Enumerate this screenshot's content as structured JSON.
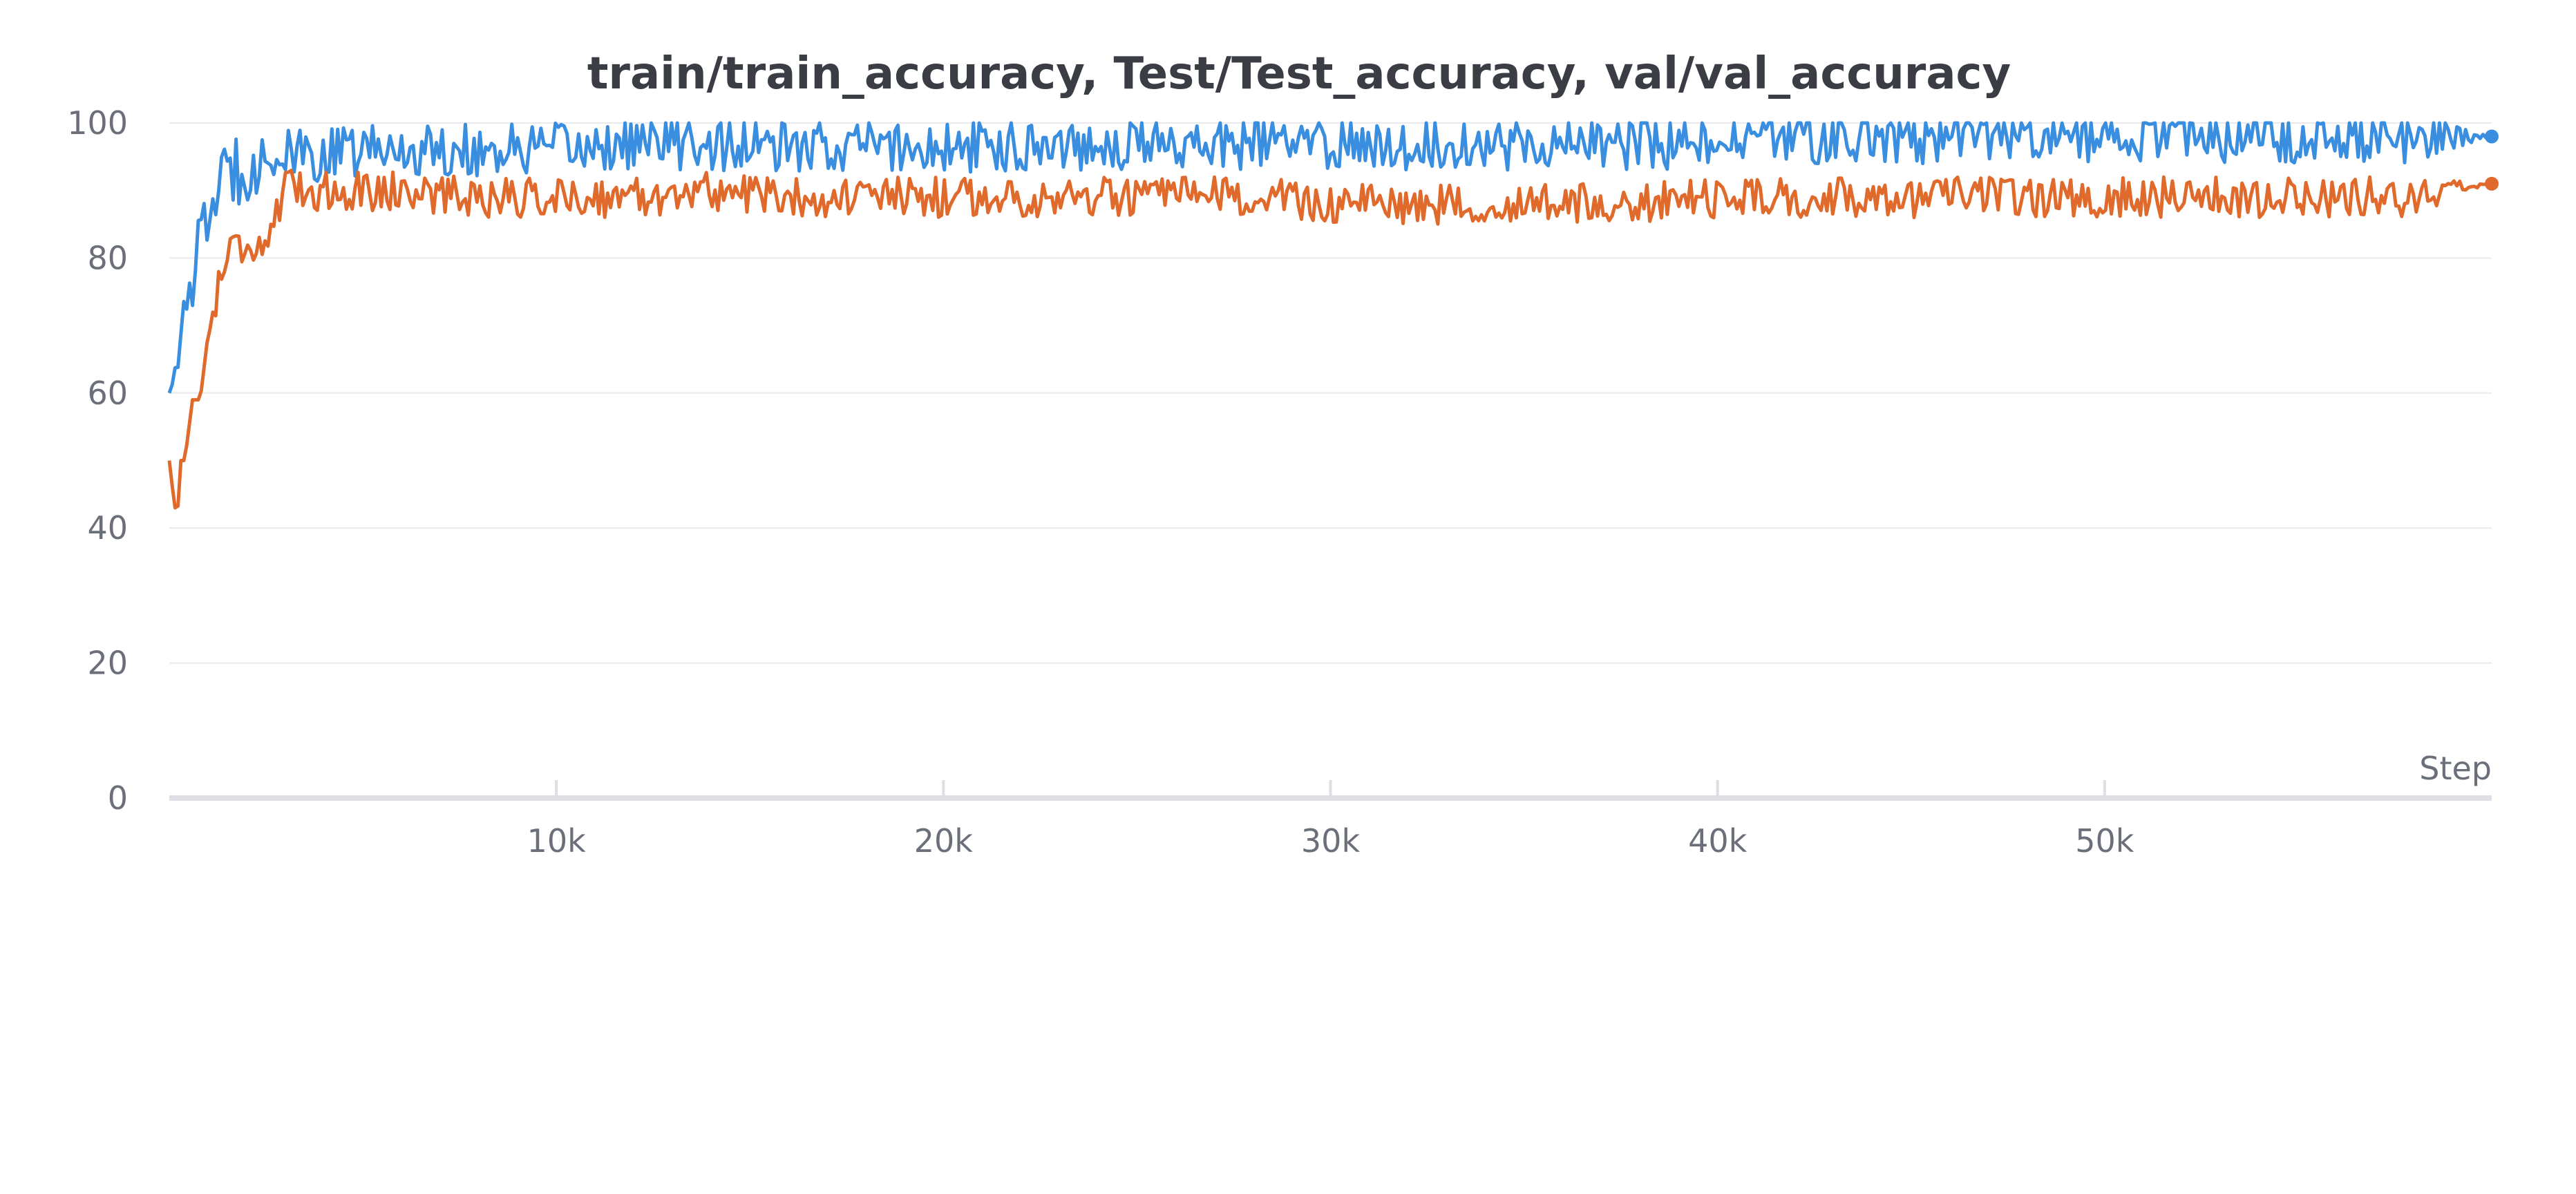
{
  "chart_data": {
    "type": "line",
    "title": "train/train_accuracy, Test/Test_accuracy, val/val_accuracy",
    "xlabel": "Step",
    "ylabel": "",
    "xlim": [
      0,
      60000
    ],
    "ylim": [
      0,
      100
    ],
    "y_ticks": [
      "0",
      "20",
      "40",
      "60",
      "80",
      "100"
    ],
    "x_ticks": [
      "10k",
      "20k",
      "30k",
      "40k",
      "50k"
    ],
    "x_tick_values": [
      10000,
      20000,
      30000,
      40000,
      50000
    ],
    "grid": true,
    "legend": "none",
    "series": [
      {
        "color": "#3a8ee0",
        "end_marker": true,
        "x": [
          0,
          150,
          300,
          500,
          700,
          900,
          1100,
          1300,
          1600,
          1900,
          2200,
          2500,
          2800,
          3000,
          4000,
          5000,
          6000,
          8000,
          10000,
          12000,
          14000,
          16000,
          18000,
          20000,
          22000,
          24000,
          26000,
          28000,
          30000,
          32000,
          34000,
          36000,
          38000,
          40000,
          42000,
          44000,
          46000,
          48000,
          50000,
          52000,
          54000,
          56000,
          58000,
          60000
        ],
        "values": [
          60,
          64,
          68,
          74,
          80,
          84,
          88,
          91,
          93,
          94,
          94,
          95,
          95,
          95,
          95,
          96,
          96,
          96,
          96,
          97,
          97,
          96,
          97,
          96,
          97,
          97,
          97,
          97,
          97,
          97,
          97,
          97,
          97,
          97,
          98,
          98,
          98,
          98,
          98,
          98,
          98,
          98,
          98,
          98
        ],
        "noise": [
          0,
          2,
          3,
          4,
          5,
          5,
          5,
          5,
          6,
          6,
          5,
          5,
          5,
          4,
          4,
          4,
          4,
          4,
          4,
          4,
          4,
          4,
          4,
          4,
          4,
          4,
          4,
          4,
          4,
          4,
          4,
          4,
          4,
          4,
          4,
          4,
          4,
          4,
          4,
          4,
          4,
          4,
          4,
          0
        ]
      },
      {
        "color": "#e06a2c",
        "end_marker": true,
        "x": [
          0,
          100,
          200,
          300,
          400,
          600,
          800,
          1000,
          1300,
          1600,
          2000,
          2400,
          2700,
          3000,
          4000,
          6000,
          8000,
          10000,
          12000,
          14000,
          16000,
          18000,
          20000,
          22000,
          24000,
          26000,
          28000,
          30000,
          32000,
          34000,
          36000,
          38000,
          40000,
          42000,
          44000,
          46000,
          48000,
          50000,
          52000,
          54000,
          56000,
          58000,
          60000
        ],
        "values": [
          50,
          45,
          41,
          50,
          50,
          59,
          59,
          68,
          77,
          82,
          82,
          82,
          85,
          90,
          90,
          90,
          89,
          89,
          89,
          90,
          89,
          89,
          89,
          89,
          89,
          89,
          89,
          88,
          88,
          88,
          88,
          88,
          89,
          89,
          89,
          89,
          89,
          89,
          89,
          89,
          89,
          89,
          91
        ],
        "noise": [
          0,
          0,
          0,
          0,
          0,
          0,
          0,
          2,
          3,
          3,
          3,
          3,
          3,
          3,
          3,
          3,
          3,
          3,
          3,
          3,
          3,
          3,
          3,
          3,
          3,
          3,
          3,
          3,
          3,
          3,
          3,
          3,
          3,
          3,
          3,
          3,
          3,
          3,
          3,
          3,
          3,
          3,
          0
        ]
      }
    ]
  }
}
